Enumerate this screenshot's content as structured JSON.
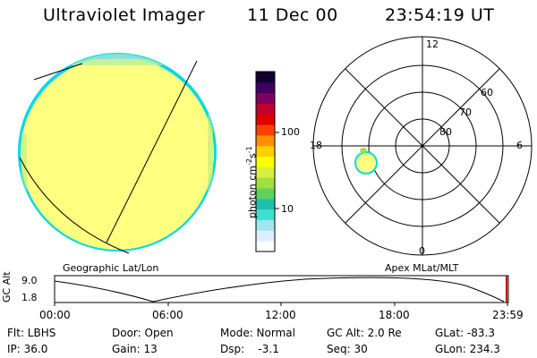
{
  "header": {
    "instrument": "Ultraviolet Imager",
    "date": "11 Dec 00",
    "time": "23:54:19 UT"
  },
  "colorbar": {
    "unit_label": "photon cm-2s-1",
    "unit_base": "photon cm",
    "unit_exp1": "-2",
    "unit_mid": "s",
    "unit_exp2": "-1",
    "tick_100": "100",
    "tick_10": "10",
    "colors": [
      "#ffffff",
      "#ddeeff",
      "#a0e6f0",
      "#40e0d0",
      "#20c0b0",
      "#60d060",
      "#a0e040",
      "#d8f040",
      "#ffff00",
      "#ffd000",
      "#ff9000",
      "#ff4000",
      "#e00000",
      "#c00030",
      "#800060",
      "#400060",
      "#100030"
    ]
  },
  "left_panel": {
    "label": "Geographic Lat/Lon",
    "disk_color": "#ffff80",
    "rim_color": "#00d8e8"
  },
  "right_panel": {
    "label": "Apex MLat/MLT",
    "mlt_labels": {
      "top": "12",
      "left": "18",
      "right": "6",
      "bottom": "0"
    },
    "lat_labels": [
      "60",
      "70",
      "80"
    ]
  },
  "altitude_plot": {
    "ylabel": "GC Alt",
    "ytick_top": "9.0",
    "ytick_bottom": "1.8",
    "xticks": [
      "00:00",
      "06:00",
      "12:00",
      "18:00",
      "23:59"
    ],
    "marker_color": "#c00000"
  },
  "info": {
    "flt": "Flt: LBHS",
    "ip": "IP: 36.0",
    "door": "Door: Open",
    "gain": "Gain: 13",
    "mode": "Mode: Normal",
    "dsp": "Dsp:    -3.1",
    "gcalt": "GC Alt: 2.0 Re",
    "seq": "Seq: 30",
    "glat": "GLat: -83.3",
    "glon": "GLon: 234.3"
  }
}
